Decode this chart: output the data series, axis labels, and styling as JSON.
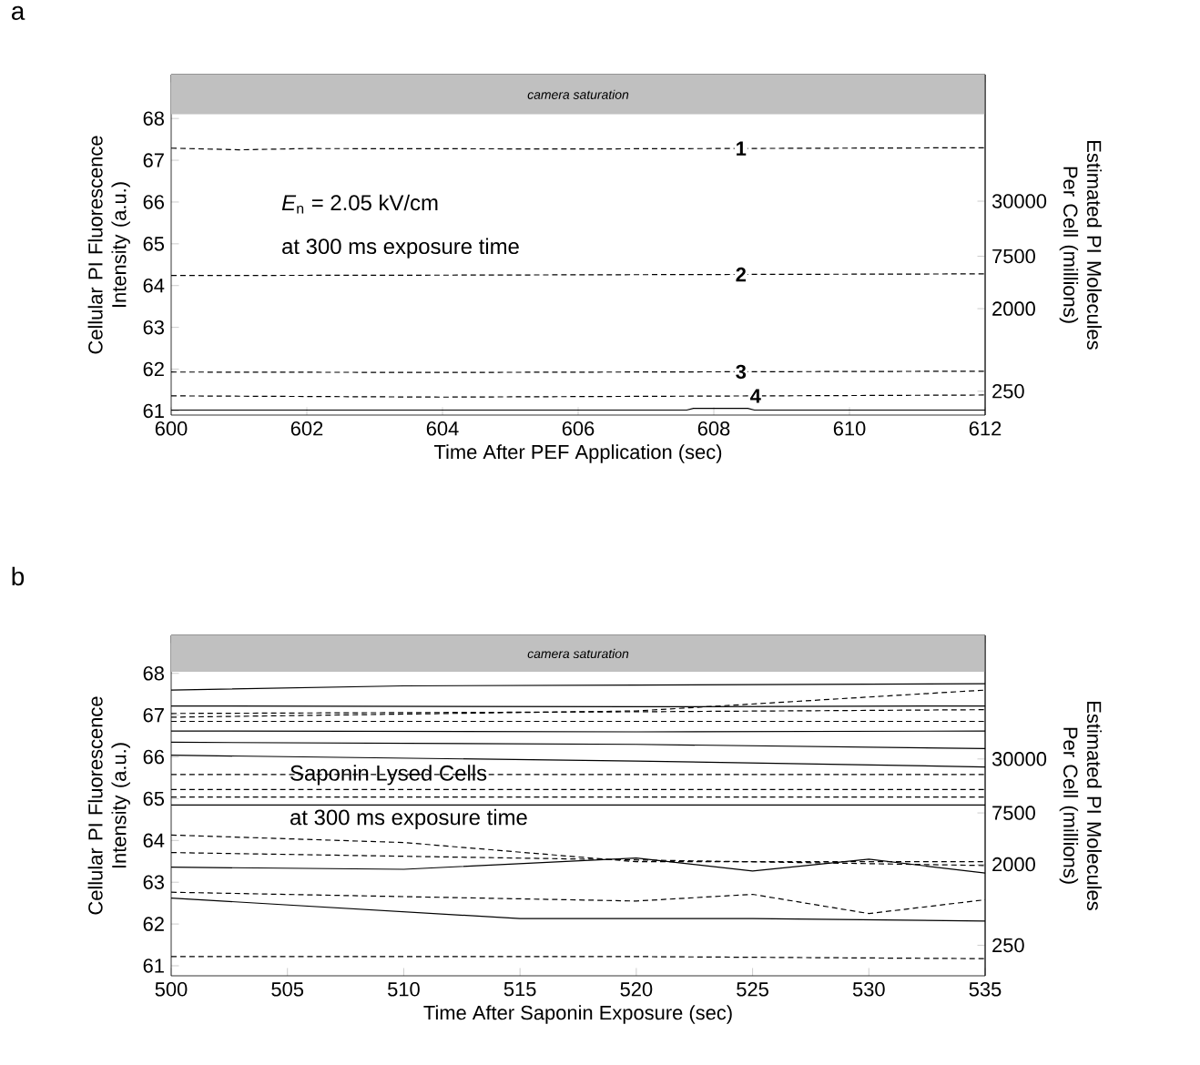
{
  "chart_data": [
    {
      "type": "line",
      "xlabel": "Time After PEF Application (sec)",
      "ylabel": "Cellular PI Fluorescence Intensity (a.u.)",
      "y2label": "Estimated PI Molecules Per Cell (millions)",
      "xlim": [
        600,
        612
      ],
      "xticks": [
        600,
        602,
        604,
        606,
        608,
        610,
        612
      ],
      "ylim": [
        60.9,
        69.05
      ],
      "yticks": [
        61,
        62,
        63,
        64,
        65,
        66,
        67,
        68
      ],
      "y2lim": [
        137,
        728000
      ],
      "y2ticks": [
        250,
        2000,
        7500,
        30000
      ],
      "log": "y2",
      "bands": [
        {
          "axis": "y",
          "from": 68.1,
          "to": 69.05,
          "label": "camera saturation",
          "color": "#c0c0c0"
        }
      ],
      "annotations": [
        "a",
        "*E*$_{n}$ = 2.05 kV/cm",
        "at 300 ms exposure time"
      ],
      "series": [
        {
          "name": "1",
          "color": "#000000",
          "line_style": "dashed",
          "x": [
            600,
            601,
            602,
            606,
            612
          ],
          "values": [
            67.29,
            67.25,
            67.28,
            67.27,
            67.3
          ]
        },
        {
          "name": "2",
          "color": "#000000",
          "line_style": "dashed",
          "x": [
            600,
            604,
            612
          ],
          "values": [
            64.24,
            64.25,
            64.28
          ]
        },
        {
          "name": "3",
          "color": "#000000",
          "line_style": "dashed",
          "x": [
            600,
            604,
            612
          ],
          "values": [
            61.93,
            61.92,
            61.95
          ]
        },
        {
          "name": "4",
          "color": "#000000",
          "line_style": "dashed",
          "x": [
            600,
            604,
            612
          ],
          "values": [
            61.36,
            61.33,
            61.38
          ]
        },
        {
          "color": "#000000",
          "line_style": "solid",
          "x": [
            600,
            607.6,
            607.7,
            608.5,
            608.6,
            612
          ],
          "values": [
            61.02,
            61.02,
            61.06,
            61.06,
            61.02,
            61.02
          ]
        }
      ]
    },
    {
      "type": "line",
      "xlabel": "Time After Saponin Exposure (sec)",
      "ylabel": "Cellular PI Fluorescence Intensity (a.u.)",
      "y2label": "Estimated PI Molecules Per Cell (millions)",
      "xlim": [
        500,
        535
      ],
      "xticks": [
        500,
        505,
        510,
        515,
        520,
        525,
        530,
        535
      ],
      "ylim": [
        60.76,
        68.91
      ],
      "yticks": [
        61,
        62,
        63,
        64,
        65,
        66,
        67,
        68
      ],
      "y2lim": [
        114,
        720000
      ],
      "y2ticks": [
        250,
        2000,
        7500,
        30000
      ],
      "log": "y2",
      "bands": [
        {
          "axis": "y",
          "from": 68.04,
          "to": 68.91,
          "label": "camera saturation",
          "color": "#c0c0c0"
        }
      ],
      "annotations": [
        "b",
        "Saponin Lysed Cells",
        "at 300 ms exposure time"
      ],
      "series": [
        {
          "color": "#000000",
          "line_style": "solid",
          "x": [
            500,
            510,
            520,
            535
          ],
          "values": [
            67.6,
            67.7,
            67.72,
            67.75
          ]
        },
        {
          "color": "#000000",
          "line_style": "solid",
          "x": [
            500,
            520,
            535
          ],
          "values": [
            67.22,
            67.2,
            67.22
          ]
        },
        {
          "color": "#000000",
          "line_style": "solid",
          "x": [
            500,
            520,
            535
          ],
          "values": [
            66.62,
            66.6,
            66.62
          ]
        },
        {
          "color": "#000000",
          "line_style": "solid",
          "x": [
            500,
            520,
            535
          ],
          "values": [
            66.35,
            66.3,
            66.2
          ]
        },
        {
          "color": "#000000",
          "line_style": "solid",
          "x": [
            500,
            520,
            535
          ],
          "values": [
            66.04,
            65.9,
            65.76
          ]
        },
        {
          "color": "#000000",
          "line_style": "solid",
          "x": [
            500,
            520,
            535
          ],
          "values": [
            64.85,
            64.85,
            64.85
          ]
        },
        {
          "color": "#000000",
          "line_style": "solid",
          "x": [
            500,
            510,
            520,
            525,
            530,
            535
          ],
          "values": [
            63.36,
            63.31,
            63.58,
            63.27,
            63.55,
            63.22
          ]
        },
        {
          "color": "#000000",
          "line_style": "solid",
          "x": [
            500,
            515,
            525,
            535
          ],
          "values": [
            62.62,
            62.13,
            62.13,
            62.07
          ]
        },
        {
          "color": "#000000",
          "line_style": "dashed",
          "x": [
            500,
            520,
            535
          ],
          "values": [
            66.95,
            67.1,
            67.6
          ]
        },
        {
          "color": "#000000",
          "line_style": "dashed",
          "x": [
            500,
            520,
            535
          ],
          "values": [
            67.04,
            67.08,
            67.13
          ]
        },
        {
          "color": "#000000",
          "line_style": "dashed",
          "x": [
            500,
            520,
            535
          ],
          "values": [
            66.85,
            66.85,
            66.85
          ]
        },
        {
          "color": "#000000",
          "line_style": "dashed",
          "x": [
            500,
            520,
            535
          ],
          "values": [
            65.58,
            65.58,
            65.58
          ]
        },
        {
          "color": "#000000",
          "line_style": "dashed",
          "x": [
            500,
            520,
            535
          ],
          "values": [
            65.22,
            65.22,
            65.22
          ]
        },
        {
          "color": "#000000",
          "line_style": "dashed",
          "x": [
            500,
            520,
            535
          ],
          "values": [
            65.04,
            65.04,
            65.04
          ]
        },
        {
          "color": "#000000",
          "line_style": "dashed",
          "x": [
            500,
            510,
            520,
            535
          ],
          "values": [
            64.13,
            63.95,
            63.49,
            63.49
          ]
        },
        {
          "color": "#000000",
          "line_style": "dashed",
          "x": [
            500,
            535
          ],
          "values": [
            63.71,
            63.4
          ]
        },
        {
          "color": "#000000",
          "line_style": "dashed",
          "x": [
            500,
            520,
            525,
            530,
            535
          ],
          "values": [
            62.76,
            62.55,
            62.71,
            62.25,
            62.58
          ]
        },
        {
          "color": "#000000",
          "line_style": "dashed",
          "x": [
            500,
            520,
            535
          ],
          "values": [
            61.22,
            61.22,
            61.17
          ]
        }
      ]
    }
  ]
}
